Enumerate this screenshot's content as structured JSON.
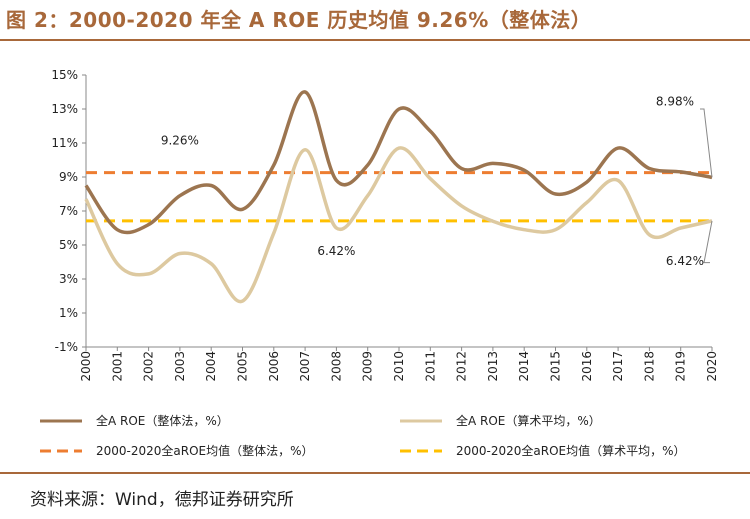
{
  "figure": {
    "title": "图 2：2000-2020 年全 A ROE 历史均值 9.26%（整体法）",
    "source": "资料来源：Wind，德邦证券研究所"
  },
  "chart_data": {
    "type": "line",
    "x": [
      "2000",
      "2001",
      "2002",
      "2003",
      "2004",
      "2005",
      "2006",
      "2007",
      "2008",
      "2009",
      "2010",
      "2011",
      "2012",
      "2013",
      "2014",
      "2015",
      "2016",
      "2017",
      "2018",
      "2019",
      "2020"
    ],
    "y_ticks": [
      "15%",
      "13%",
      "11%",
      "9%",
      "7%",
      "5%",
      "3%",
      "1%",
      "-1%"
    ],
    "ylim": [
      -1,
      15
    ],
    "series": [
      {
        "name": "全A ROE（整体法，%）",
        "color": "#9c7550",
        "style": "solid",
        "values": [
          8.5,
          5.9,
          6.2,
          7.9,
          8.5,
          7.1,
          9.7,
          14.0,
          8.8,
          9.7,
          13.0,
          11.7,
          9.5,
          9.8,
          9.4,
          8.0,
          8.7,
          10.7,
          9.5,
          9.3,
          8.98
        ]
      },
      {
        "name": "全A ROE（算术平均，%）",
        "color": "#ddc9a0",
        "style": "solid",
        "values": [
          7.7,
          3.9,
          3.3,
          4.5,
          3.9,
          1.7,
          5.7,
          10.6,
          6.0,
          7.9,
          10.7,
          8.9,
          7.3,
          6.4,
          5.9,
          5.9,
          7.5,
          8.8,
          5.6,
          6.0,
          6.42
        ]
      },
      {
        "name": "2000-2020全aROE均值（整体法，%）",
        "color": "#ed7d31",
        "style": "dashed",
        "constant": 9.26
      },
      {
        "name": "2000-2020全aROE均值（算术平均，%）",
        "color": "#ffc000",
        "style": "dashed",
        "constant": 6.42
      }
    ],
    "annotations": [
      {
        "text": "9.26%",
        "x": "2003",
        "y": 9.26
      },
      {
        "text": "8.98%",
        "x": "2020",
        "y": 8.98
      },
      {
        "text": "6.42%",
        "x": "2008",
        "y": 6.42
      },
      {
        "text": "6.42%",
        "x": "2020",
        "y": 6.42
      }
    ],
    "grid": false,
    "legend_position": "bottom"
  }
}
